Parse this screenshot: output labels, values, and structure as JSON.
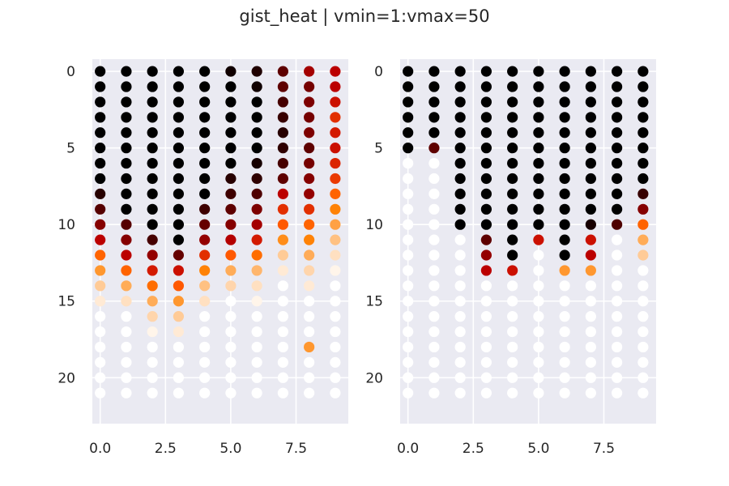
{
  "chart_data": {
    "type": "scatter",
    "title": "gist_heat | vmin=1:vmax=50",
    "colormap": "gist_heat",
    "vmin": 1,
    "vmax": 50,
    "grid": true,
    "y_inverted": true,
    "rows": 22,
    "subplots": [
      {
        "name": "left",
        "xlim": [
          -0.3,
          9.5
        ],
        "ylim": [
          23,
          -0.8
        ],
        "xticks": [
          0.0,
          2.5,
          5.0,
          7.5
        ],
        "xtick_labels": [
          "0.0",
          "2.5",
          "5.0",
          "7.5"
        ],
        "yticks": [
          0,
          5,
          10,
          15,
          20
        ],
        "ytick_labels": [
          "0",
          "5",
          "10",
          "15",
          "20"
        ],
        "series": [
          {
            "x": 0,
            "rows": [
              1,
              1,
              1,
              1,
              1,
              1,
              1,
              1,
              6,
              12,
              18,
              25,
              35,
              40,
              45,
              48,
              50,
              50,
              50,
              50,
              50,
              50
            ]
          },
          {
            "x": 1,
            "rows": [
              1,
              1,
              1,
              1,
              1,
              1,
              1,
              1,
              1,
              1,
              12,
              18,
              25,
              35,
              42,
              47,
              50,
              50,
              50,
              50,
              50,
              50
            ]
          },
          {
            "x": 2,
            "rows": [
              1,
              1,
              1,
              1,
              1,
              1,
              1,
              1,
              1,
              1,
              1,
              10,
              20,
              28,
              36,
              42,
              46,
              49,
              50,
              50,
              50,
              50
            ]
          },
          {
            "x": 3,
            "rows": [
              1,
              1,
              1,
              1,
              1,
              1,
              1,
              1,
              1,
              1,
              1,
              1,
              14,
              27,
              34,
              40,
              45,
              48,
              50,
              50,
              50,
              50
            ]
          },
          {
            "x": 4,
            "rows": [
              1,
              1,
              1,
              1,
              1,
              1,
              1,
              1,
              1,
              9,
              14,
              20,
              30,
              38,
              44,
              47,
              50,
              50,
              50,
              50,
              50,
              50
            ]
          },
          {
            "x": 5,
            "rows": [
              3,
              1,
              1,
              1,
              1,
              1,
              1,
              6,
              9,
              13,
              18,
              24,
              34,
              42,
              46,
              50,
              50,
              50,
              50,
              50,
              50,
              50
            ]
          },
          {
            "x": 6,
            "rows": [
              5,
              3,
              1,
              1,
              1,
              1,
              4,
              7,
              11,
              17,
              22,
              28,
              36,
              43,
              47,
              49,
              50,
              50,
              50,
              50,
              50,
              50
            ]
          },
          {
            "x": 7,
            "rows": [
              13,
              13,
              10,
              8,
              6,
              7,
              10,
              13,
              25,
              30,
              34,
              39,
              45,
              48,
              50,
              50,
              50,
              50,
              50,
              50,
              50,
              50
            ]
          },
          {
            "x": 8,
            "rows": [
              22,
              16,
              17,
              16,
              17,
              13,
              16,
              18,
              20,
              30,
              35,
              38,
              42,
              46,
              48,
              50,
              50,
              50,
              40,
              50,
              50,
              50
            ]
          },
          {
            "x": 9,
            "rows": [
              25,
              25,
              27,
              30,
              28,
              27,
              29,
              31,
              35,
              38,
              41,
              44,
              47,
              49,
              50,
              50,
              50,
              50,
              50,
              50,
              50,
              50
            ]
          }
        ]
      },
      {
        "name": "right",
        "xlim": [
          -0.3,
          9.5
        ],
        "ylim": [
          23,
          -0.8
        ],
        "xticks": [
          0.0,
          2.5,
          5.0,
          7.5
        ],
        "xtick_labels": [
          "0.0",
          "2.5",
          "5.0",
          "7.5"
        ],
        "yticks": [
          0,
          5,
          10,
          15,
          20
        ],
        "ytick_labels": [
          "0",
          "5",
          "10",
          "15",
          "20"
        ],
        "series": [
          {
            "x": 0,
            "rows": [
              1,
              1,
              1,
              1,
              1,
              1,
              50,
              50,
              50,
              50,
              50,
              50,
              50,
              50,
              50,
              50,
              50,
              50,
              50,
              50,
              50,
              50
            ]
          },
          {
            "x": 1,
            "rows": [
              1,
              1,
              1,
              1,
              1,
              13,
              50,
              50,
              50,
              50,
              50,
              50,
              50,
              50,
              50,
              50,
              50,
              50,
              50,
              50,
              50,
              50
            ]
          },
          {
            "x": 2,
            "rows": [
              1,
              1,
              1,
              1,
              1,
              1,
              1,
              1,
              1,
              1,
              1,
              50,
              50,
              50,
              50,
              50,
              50,
              50,
              50,
              50,
              50,
              50
            ]
          },
          {
            "x": 3,
            "rows": [
              1,
              1,
              1,
              1,
              1,
              1,
              1,
              1,
              1,
              1,
              1,
              13,
              20,
              25,
              50,
              50,
              50,
              50,
              50,
              50,
              50,
              50
            ]
          },
          {
            "x": 4,
            "rows": [
              1,
              1,
              1,
              1,
              1,
              1,
              1,
              1,
              1,
              1,
              1,
              1,
              1,
              27,
              50,
              50,
              50,
              50,
              50,
              50,
              50,
              50
            ]
          },
          {
            "x": 5,
            "rows": [
              1,
              1,
              1,
              1,
              1,
              1,
              1,
              1,
              1,
              1,
              1,
              27,
              50,
              50,
              50,
              50,
              50,
              50,
              50,
              50,
              50,
              50
            ]
          },
          {
            "x": 6,
            "rows": [
              1,
              1,
              1,
              1,
              1,
              1,
              1,
              1,
              1,
              1,
              1,
              1,
              1,
              40,
              50,
              50,
              50,
              50,
              50,
              50,
              50,
              50
            ]
          },
          {
            "x": 7,
            "rows": [
              1,
              1,
              1,
              1,
              1,
              1,
              1,
              1,
              1,
              1,
              4,
              27,
              25,
              40,
              50,
              50,
              50,
              50,
              50,
              50,
              50,
              50
            ]
          },
          {
            "x": 8,
            "rows": [
              1,
              1,
              1,
              1,
              1,
              1,
              1,
              1,
              1,
              1,
              11,
              50,
              50,
              50,
              50,
              50,
              50,
              50,
              50,
              50,
              50,
              50
            ]
          },
          {
            "x": 9,
            "rows": [
              1,
              1,
              1,
              1,
              1,
              1,
              1,
              1,
              8,
              18,
              35,
              42,
              45,
              50,
              50,
              50,
              50,
              50,
              50,
              50,
              50,
              50
            ]
          }
        ]
      }
    ]
  }
}
